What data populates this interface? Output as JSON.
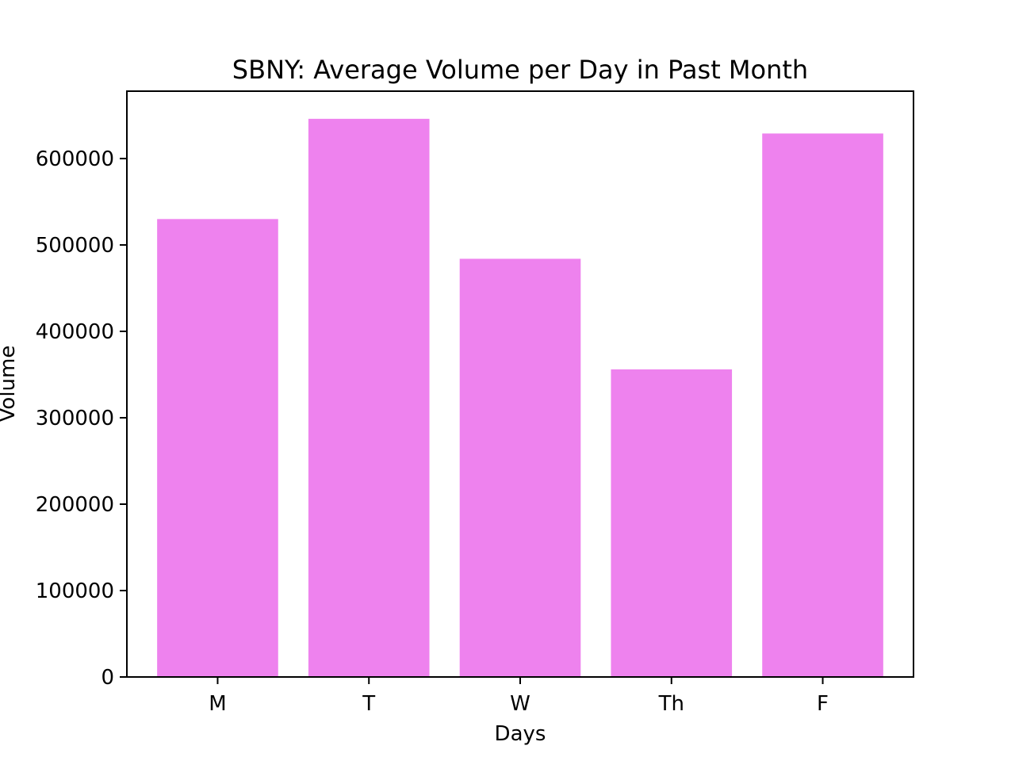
{
  "chart_data": {
    "type": "bar",
    "title": "SBNY: Average Volume per Day in Past Month",
    "xlabel": "Days",
    "ylabel": "Volume",
    "categories": [
      "M",
      "T",
      "W",
      "Th",
      "F"
    ],
    "values": [
      530000,
      646000,
      484000,
      356000,
      629000
    ],
    "ylim": [
      0,
      678000
    ],
    "yticks": [
      0,
      100000,
      200000,
      300000,
      400000,
      500000,
      600000
    ],
    "ytick_labels": [
      "0",
      "100000",
      "200000",
      "300000",
      "400000",
      "500000",
      "600000"
    ],
    "bar_color": "#ee82ee",
    "grid": false,
    "legend": "none"
  }
}
